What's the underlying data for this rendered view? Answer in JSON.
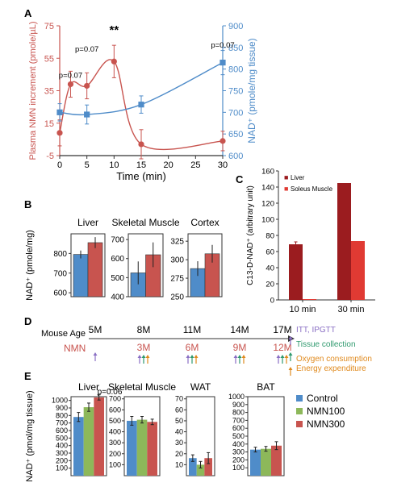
{
  "colors": {
    "red": "#c8544f",
    "blue": "#4f8cc9",
    "dark_red": "#9b1c1f",
    "bright_red": "#e03a33",
    "green": "#8db85a",
    "axis": "#333333",
    "purple": "#8a6fc4",
    "teal": "#2f9a6e",
    "orange": "#e08a1e"
  },
  "panel_labels": [
    "A",
    "B",
    "C",
    "D",
    "E"
  ],
  "chart_data": [
    {
      "id": "A",
      "type": "line",
      "xlabel": "Time (min)",
      "ylabel_left": "Plasma NMN increment (pmole/µL)",
      "ylabel_right": "NAD⁺ (pmole/mg tissue)",
      "xticks": [
        0,
        5,
        10,
        15,
        20,
        25,
        30
      ],
      "xlim": [
        0,
        30
      ],
      "yticks_left": [
        -5,
        15,
        35,
        55,
        75
      ],
      "ylim_left": [
        -5,
        75
      ],
      "yticks_right": [
        600,
        650,
        700,
        750,
        800,
        850,
        900
      ],
      "ylim_right": [
        600,
        900
      ],
      "series": [
        {
          "axis": "left",
          "marker": "circle",
          "color": "#c8544f",
          "x": [
            0,
            2,
            5,
            10,
            15,
            30
          ],
          "y": [
            9,
            39,
            38,
            53,
            2,
            4
          ],
          "err": [
            8,
            8,
            8,
            10,
            9,
            6
          ]
        },
        {
          "axis": "right",
          "marker": "square",
          "color": "#4f8cc9",
          "x": [
            0,
            5,
            15,
            30
          ],
          "y": [
            700,
            695,
            718,
            815
          ],
          "err": [
            20,
            22,
            20,
            28
          ]
        }
      ],
      "annotations": [
        {
          "text": "p=0.07",
          "x": 2,
          "y": 43
        },
        {
          "text": "p=0.07",
          "x": 5,
          "y": 59
        },
        {
          "text": "**",
          "x": 10,
          "y": 70
        },
        {
          "text": "p=0.07",
          "x": 30,
          "y": 850
        }
      ]
    },
    {
      "id": "B",
      "type": "bar",
      "ylabel": "NAD⁺ (pmole/mg)",
      "panels": [
        {
          "title": "Liver",
          "yticks": [
            600,
            700,
            800
          ],
          "ylim": [
            580,
            900
          ],
          "values": [
            795,
            855
          ],
          "err": [
            20,
            28
          ]
        },
        {
          "title": "Skeletal Muscle",
          "yticks": [
            400,
            500,
            600,
            700
          ],
          "ylim": [
            400,
            730
          ],
          "values": [
            525,
            620
          ],
          "err": [
            60,
            65
          ]
        },
        {
          "title": "Cortex",
          "yticks": [
            250,
            275,
            300,
            325
          ],
          "ylim": [
            250,
            335
          ],
          "values": [
            288,
            308
          ],
          "err": [
            10,
            12
          ]
        }
      ]
    },
    {
      "id": "C",
      "type": "bar",
      "ylabel": "C13-D-NAD⁺ (arbitrary unit)",
      "yticks": [
        0,
        20,
        40,
        60,
        80,
        100,
        120,
        140,
        160
      ],
      "ylim": [
        0,
        160
      ],
      "categories": [
        "10 min",
        "30 min"
      ],
      "series": [
        {
          "name": "Liver",
          "color": "#9b1c1f",
          "values": [
            69,
            145
          ],
          "err": [
            3,
            0
          ]
        },
        {
          "name": "Soleus Muscle",
          "color": "#e03a33",
          "values": [
            1,
            73
          ],
          "err": [
            0,
            0
          ]
        }
      ]
    },
    {
      "id": "E",
      "type": "bar",
      "ylabel": "NAD⁺ (pmol/mg tissue)",
      "legend": [
        "Control",
        "NMN100",
        "NMN300"
      ],
      "panels": [
        {
          "title": "Liver",
          "yticks": [
            100,
            200,
            300,
            400,
            500,
            600,
            700,
            800,
            900,
            1000
          ],
          "ylim": [
            0,
            1050
          ],
          "values": [
            780,
            910,
            1040
          ],
          "err": [
            60,
            55,
            35
          ],
          "annotation": "p=0.06"
        },
        {
          "title": "Skeletal Muscle",
          "yticks": [
            100,
            200,
            300,
            400,
            500,
            600,
            700
          ],
          "ylim": [
            0,
            720
          ],
          "values": [
            500,
            510,
            490
          ],
          "err": [
            40,
            30,
            25
          ]
        },
        {
          "title": "WAT",
          "yticks": [
            10,
            20,
            30,
            40,
            50,
            60,
            70
          ],
          "ylim": [
            0,
            72
          ],
          "values": [
            16,
            10,
            16
          ],
          "err": [
            3,
            3,
            5
          ]
        },
        {
          "title": "BAT",
          "yticks": [
            100,
            200,
            300,
            400,
            500,
            600,
            700,
            800,
            900,
            1000
          ],
          "ylim": [
            0,
            1000
          ],
          "values": [
            330,
            340,
            380
          ],
          "err": [
            30,
            30,
            50
          ]
        }
      ]
    }
  ],
  "timeline": {
    "row1_label": "Mouse Age",
    "row2_label": "NMN",
    "ages": [
      "5M",
      "8M",
      "11M",
      "14M",
      "17M"
    ],
    "doses": [
      "3M",
      "6M",
      "9M",
      "12M"
    ],
    "legend": [
      {
        "text": "ITT, IPGTT",
        "color": "#8a6fc4"
      },
      {
        "text": "Tissue collection",
        "color": "#2f9a6e"
      },
      {
        "text": "Oxygen consumption",
        "color": "#e08a1e"
      },
      {
        "text": "Energy expenditure",
        "color": "#e08a1e"
      }
    ]
  }
}
